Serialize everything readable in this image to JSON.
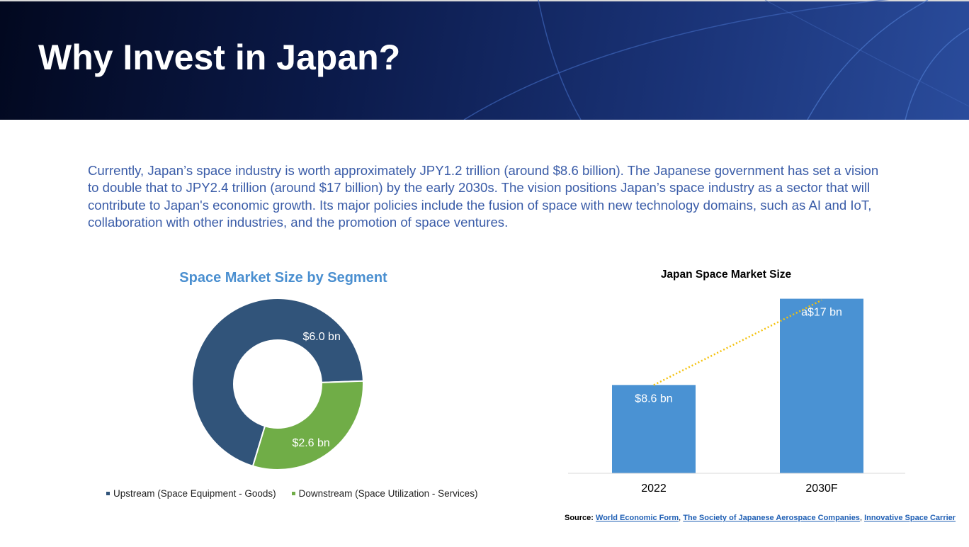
{
  "slide": {
    "title": "Why Invest in Japan?",
    "intro": "Currently, Japan’s space industry is worth approximately JPY1.2 trillion (around $8.6 billion). The Japanese government has set a vision to double that to JPY2.4 trillion (around $17 billion) by the early 2030s. The vision positions Japan’s space industry as a sector that will contribute to Japan's economic growth. Its major policies include the fusion of space with new technology domains, such as AI and IoT, collaboration with other industries, and the promotion of space ventures."
  },
  "source": {
    "label": "Source:",
    "links": [
      "World Economic Form",
      "The Society of Japanese Aerospace Companies",
      "Innovative Space Carrier"
    ],
    "separator": ","
  },
  "chart_data": [
    {
      "type": "pie",
      "donut": true,
      "title": "Space Market Size by Segment",
      "categories": [
        "Upstream (Space Equipment - Goods)",
        "Downstream (Space Utilization - Services)"
      ],
      "values": [
        6.0,
        2.6
      ],
      "data_labels": [
        "$6.0 bn",
        "$2.6 bn"
      ],
      "colors": [
        "#31547a",
        "#70ad47"
      ],
      "legend": "bottom"
    },
    {
      "type": "bar",
      "title": "Japan Space Market Size",
      "categories": [
        "2022",
        "2030F"
      ],
      "values": [
        8.6,
        17
      ],
      "data_labels": [
        "$8.6 bn",
        "a$17 bn"
      ],
      "color": "#4a92d3",
      "trendline": {
        "style": "dotted",
        "color": "#f4c20d"
      },
      "ylim": [
        0,
        20
      ],
      "grid": false,
      "legend": "none"
    }
  ]
}
